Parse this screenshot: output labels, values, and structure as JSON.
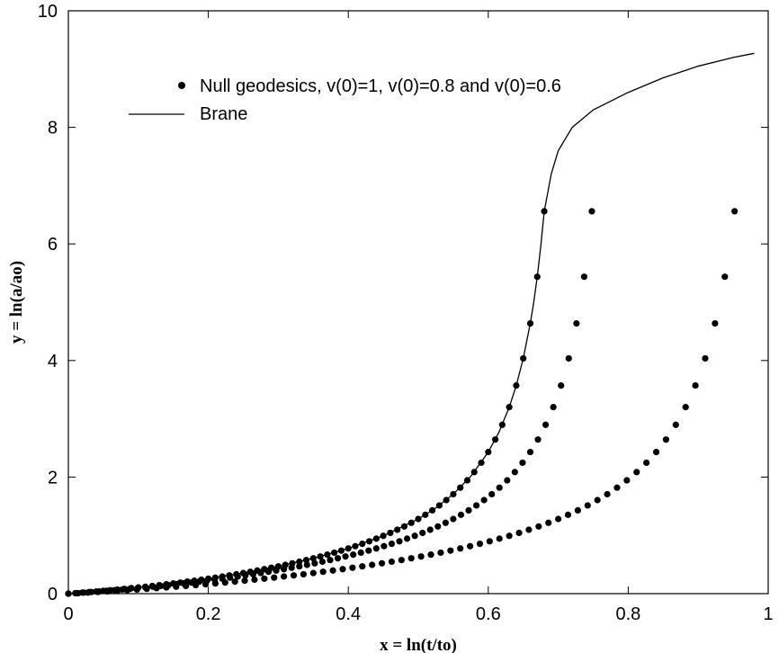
{
  "chart_data": {
    "type": "scatter",
    "title": "",
    "xlabel": "x = ln(t/to)",
    "ylabel": "y = ln(a/ao)",
    "xlim": [
      0,
      1
    ],
    "ylim": [
      0,
      10
    ],
    "xticks": [
      "0",
      "0.2",
      "0.4",
      "0.6",
      "0.8",
      "1"
    ],
    "yticks": [
      "0",
      "2",
      "4",
      "6",
      "8",
      "10"
    ],
    "legend_position": "top",
    "grid": false,
    "series": [
      {
        "name": "Null geodesics, v(0)=1, v(0)=0.8 and v(0)=0.6",
        "style": "points",
        "points": [
          [
            0.0,
            0.0
          ],
          [
            0.01,
            0.009
          ],
          [
            0.02,
            0.018
          ],
          [
            0.03,
            0.028
          ],
          [
            0.04,
            0.038
          ],
          [
            0.05,
            0.048
          ],
          [
            0.06,
            0.059
          ],
          [
            0.07,
            0.07
          ],
          [
            0.08,
            0.082
          ],
          [
            0.09,
            0.094
          ],
          [
            0.1,
            0.106
          ],
          [
            0.11,
            0.119
          ],
          [
            0.12,
            0.132
          ],
          [
            0.13,
            0.146
          ],
          [
            0.14,
            0.16
          ],
          [
            0.15,
            0.175
          ],
          [
            0.16,
            0.19
          ],
          [
            0.17,
            0.206
          ],
          [
            0.18,
            0.222
          ],
          [
            0.19,
            0.239
          ],
          [
            0.2,
            0.257
          ],
          [
            0.21,
            0.275
          ],
          [
            0.22,
            0.294
          ],
          [
            0.23,
            0.313
          ],
          [
            0.24,
            0.333
          ],
          [
            0.25,
            0.354
          ],
          [
            0.26,
            0.375
          ],
          [
            0.27,
            0.397
          ],
          [
            0.28,
            0.42
          ],
          [
            0.29,
            0.444
          ],
          [
            0.3,
            0.468
          ],
          [
            0.31,
            0.494
          ],
          [
            0.32,
            0.52
          ],
          [
            0.33,
            0.548
          ],
          [
            0.34,
            0.576
          ],
          [
            0.35,
            0.606
          ],
          [
            0.36,
            0.637
          ],
          [
            0.37,
            0.669
          ],
          [
            0.38,
            0.703
          ],
          [
            0.39,
            0.738
          ],
          [
            0.4,
            0.775
          ],
          [
            0.41,
            0.814
          ],
          [
            0.42,
            0.855
          ],
          [
            0.43,
            0.898
          ],
          [
            0.44,
            0.943
          ],
          [
            0.45,
            0.991
          ],
          [
            0.46,
            1.042
          ],
          [
            0.47,
            1.096
          ],
          [
            0.48,
            1.153
          ],
          [
            0.49,
            1.215
          ],
          [
            0.5,
            1.281
          ],
          [
            0.51,
            1.352
          ],
          [
            0.52,
            1.429
          ],
          [
            0.53,
            1.513
          ],
          [
            0.54,
            1.605
          ],
          [
            0.55,
            1.706
          ],
          [
            0.56,
            1.818
          ],
          [
            0.57,
            1.944
          ],
          [
            0.58,
            2.085
          ],
          [
            0.59,
            2.246
          ],
          [
            0.6,
            2.43
          ],
          [
            0.61,
            2.644
          ],
          [
            0.62,
            2.897
          ],
          [
            0.63,
            3.2
          ],
          [
            0.64,
            3.571
          ],
          [
            0.65,
            4.036
          ],
          [
            0.66,
            4.636
          ],
          [
            0.67,
            5.437
          ],
          [
            0.68,
            6.56
          ],
          [
            0.0,
            0.0
          ],
          [
            0.011,
            0.009
          ],
          [
            0.022,
            0.018
          ],
          [
            0.033,
            0.028
          ],
          [
            0.044,
            0.038
          ],
          [
            0.055,
            0.048
          ],
          [
            0.066,
            0.059
          ],
          [
            0.077,
            0.07
          ],
          [
            0.088,
            0.082
          ],
          [
            0.099,
            0.094
          ],
          [
            0.11,
            0.106
          ],
          [
            0.121,
            0.119
          ],
          [
            0.132,
            0.132
          ],
          [
            0.143,
            0.146
          ],
          [
            0.154,
            0.16
          ],
          [
            0.165,
            0.175
          ],
          [
            0.176,
            0.19
          ],
          [
            0.187,
            0.206
          ],
          [
            0.198,
            0.222
          ],
          [
            0.209,
            0.239
          ],
          [
            0.22,
            0.257
          ],
          [
            0.231,
            0.275
          ],
          [
            0.242,
            0.294
          ],
          [
            0.253,
            0.313
          ],
          [
            0.264,
            0.333
          ],
          [
            0.275,
            0.354
          ],
          [
            0.286,
            0.375
          ],
          [
            0.297,
            0.397
          ],
          [
            0.308,
            0.42
          ],
          [
            0.319,
            0.444
          ],
          [
            0.33,
            0.468
          ],
          [
            0.341,
            0.494
          ],
          [
            0.352,
            0.52
          ],
          [
            0.363,
            0.548
          ],
          [
            0.374,
            0.576
          ],
          [
            0.385,
            0.606
          ],
          [
            0.396,
            0.637
          ],
          [
            0.407,
            0.669
          ],
          [
            0.418,
            0.703
          ],
          [
            0.429,
            0.738
          ],
          [
            0.44,
            0.775
          ],
          [
            0.451,
            0.814
          ],
          [
            0.462,
            0.855
          ],
          [
            0.473,
            0.898
          ],
          [
            0.484,
            0.943
          ],
          [
            0.495,
            0.991
          ],
          [
            0.506,
            1.042
          ],
          [
            0.517,
            1.096
          ],
          [
            0.528,
            1.153
          ],
          [
            0.539,
            1.215
          ],
          [
            0.55,
            1.281
          ],
          [
            0.561,
            1.352
          ],
          [
            0.572,
            1.429
          ],
          [
            0.583,
            1.513
          ],
          [
            0.594,
            1.605
          ],
          [
            0.605,
            1.706
          ],
          [
            0.616,
            1.818
          ],
          [
            0.627,
            1.944
          ],
          [
            0.638,
            2.085
          ],
          [
            0.649,
            2.246
          ],
          [
            0.66,
            2.43
          ],
          [
            0.671,
            2.644
          ],
          [
            0.682,
            2.897
          ],
          [
            0.693,
            3.2
          ],
          [
            0.704,
            3.571
          ],
          [
            0.715,
            4.036
          ],
          [
            0.726,
            4.636
          ],
          [
            0.737,
            5.437
          ],
          [
            0.748,
            6.56
          ],
          [
            0.0,
            0.0
          ],
          [
            0.014,
            0.009
          ],
          [
            0.028,
            0.018
          ],
          [
            0.042,
            0.028
          ],
          [
            0.056,
            0.038
          ],
          [
            0.07,
            0.048
          ],
          [
            0.084,
            0.059
          ],
          [
            0.098,
            0.07
          ],
          [
            0.112,
            0.082
          ],
          [
            0.126,
            0.094
          ],
          [
            0.14,
            0.106
          ],
          [
            0.154,
            0.119
          ],
          [
            0.168,
            0.132
          ],
          [
            0.182,
            0.146
          ],
          [
            0.196,
            0.16
          ],
          [
            0.21,
            0.175
          ],
          [
            0.224,
            0.19
          ],
          [
            0.238,
            0.206
          ],
          [
            0.252,
            0.222
          ],
          [
            0.266,
            0.239
          ],
          [
            0.28,
            0.257
          ],
          [
            0.294,
            0.275
          ],
          [
            0.308,
            0.294
          ],
          [
            0.322,
            0.313
          ],
          [
            0.336,
            0.333
          ],
          [
            0.35,
            0.354
          ],
          [
            0.364,
            0.375
          ],
          [
            0.378,
            0.397
          ],
          [
            0.392,
            0.42
          ],
          [
            0.406,
            0.444
          ],
          [
            0.42,
            0.468
          ],
          [
            0.434,
            0.494
          ],
          [
            0.448,
            0.52
          ],
          [
            0.462,
            0.548
          ],
          [
            0.476,
            0.576
          ],
          [
            0.49,
            0.606
          ],
          [
            0.504,
            0.637
          ],
          [
            0.518,
            0.669
          ],
          [
            0.532,
            0.703
          ],
          [
            0.546,
            0.738
          ],
          [
            0.56,
            0.775
          ],
          [
            0.574,
            0.814
          ],
          [
            0.588,
            0.855
          ],
          [
            0.602,
            0.898
          ],
          [
            0.616,
            0.943
          ],
          [
            0.63,
            0.991
          ],
          [
            0.644,
            1.042
          ],
          [
            0.658,
            1.096
          ],
          [
            0.672,
            1.153
          ],
          [
            0.686,
            1.215
          ],
          [
            0.7,
            1.281
          ],
          [
            0.714,
            1.352
          ],
          [
            0.728,
            1.429
          ],
          [
            0.742,
            1.513
          ],
          [
            0.756,
            1.605
          ],
          [
            0.77,
            1.706
          ],
          [
            0.784,
            1.818
          ],
          [
            0.798,
            1.944
          ],
          [
            0.812,
            2.085
          ],
          [
            0.826,
            2.246
          ],
          [
            0.84,
            2.43
          ],
          [
            0.854,
            2.644
          ],
          [
            0.868,
            2.897
          ],
          [
            0.882,
            3.2
          ],
          [
            0.896,
            3.571
          ],
          [
            0.91,
            4.036
          ],
          [
            0.924,
            4.636
          ],
          [
            0.938,
            5.437
          ],
          [
            0.952,
            6.56
          ]
        ]
      },
      {
        "name": "Brane",
        "style": "line",
        "points": [
          [
            0.0,
            0.0
          ],
          [
            0.05,
            0.048
          ],
          [
            0.1,
            0.106
          ],
          [
            0.15,
            0.175
          ],
          [
            0.2,
            0.257
          ],
          [
            0.25,
            0.354
          ],
          [
            0.3,
            0.468
          ],
          [
            0.35,
            0.606
          ],
          [
            0.4,
            0.775
          ],
          [
            0.45,
            0.991
          ],
          [
            0.5,
            1.281
          ],
          [
            0.525,
            1.47
          ],
          [
            0.55,
            1.706
          ],
          [
            0.575,
            2.012
          ],
          [
            0.6,
            2.43
          ],
          [
            0.615,
            2.763
          ],
          [
            0.63,
            3.2
          ],
          [
            0.64,
            3.571
          ],
          [
            0.65,
            4.036
          ],
          [
            0.66,
            4.636
          ],
          [
            0.665,
            5.0
          ],
          [
            0.67,
            5.437
          ],
          [
            0.675,
            5.96
          ],
          [
            0.68,
            6.56
          ],
          [
            0.69,
            7.2
          ],
          [
            0.7,
            7.6
          ],
          [
            0.72,
            8.0
          ],
          [
            0.75,
            8.3
          ],
          [
            0.8,
            8.6
          ],
          [
            0.85,
            8.85
          ],
          [
            0.9,
            9.05
          ],
          [
            0.95,
            9.2
          ],
          [
            0.98,
            9.27
          ]
        ]
      }
    ]
  }
}
